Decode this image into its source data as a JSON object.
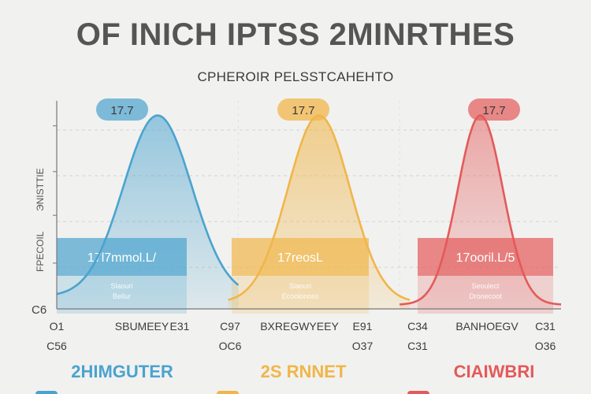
{
  "chart_data": {
    "type": "area",
    "title": "OF INICH IPTSS 2MINRTHES",
    "subtitle": "CPHEROIR PELSSTCAHEHTO",
    "ylabel_parts": [
      "FPECOIL",
      "ЭNISTTIE"
    ],
    "y_bottom_label": "C6",
    "ylim": [
      0,
      1
    ],
    "grid": true,
    "peaks": [
      {
        "name": "2HIMGUTER",
        "color": "#4aa3cf",
        "badge": "17.7",
        "center": 0.2,
        "height": 0.93,
        "width": 0.068,
        "base": 0.06
      },
      {
        "name": "2S RNNET",
        "color": "#f0b64a",
        "badge": "17.7",
        "center": 0.52,
        "height": 0.93,
        "width": 0.062,
        "base": 0.03
      },
      {
        "name": "CIAIWBRI",
        "color": "#e35a5a",
        "badge": "17.7",
        "center": 0.84,
        "height": 0.93,
        "width": 0.045,
        "base": 0.02
      }
    ],
    "boxes": [
      {
        "label": "17l7mmol.L/",
        "sub1": "Slaouri",
        "sub2": "Bellur",
        "color": "#4aa3cf"
      },
      {
        "label": "17reosL",
        "sub1": "Slaouri",
        "sub2": "Ecoolonoss",
        "color": "#f0b64a"
      },
      {
        "label": "17ooril.L/5",
        "sub1": "Seoulect",
        "sub2": "Dronecoot",
        "color": "#e35a5a"
      }
    ],
    "x_tick_rows": [
      [
        "O1",
        "SBUMEEY",
        "E31",
        "C97",
        "BXREGWYEEY",
        "E91",
        "C34",
        "BANHOEGV",
        "C31"
      ],
      [
        "C56",
        "",
        "",
        "OC6",
        "",
        "O37",
        "C31",
        "",
        "O36"
      ]
    ]
  },
  "legend_colors": [
    "#4aa3cf",
    "#f0b64a",
    "#e35a5a"
  ]
}
